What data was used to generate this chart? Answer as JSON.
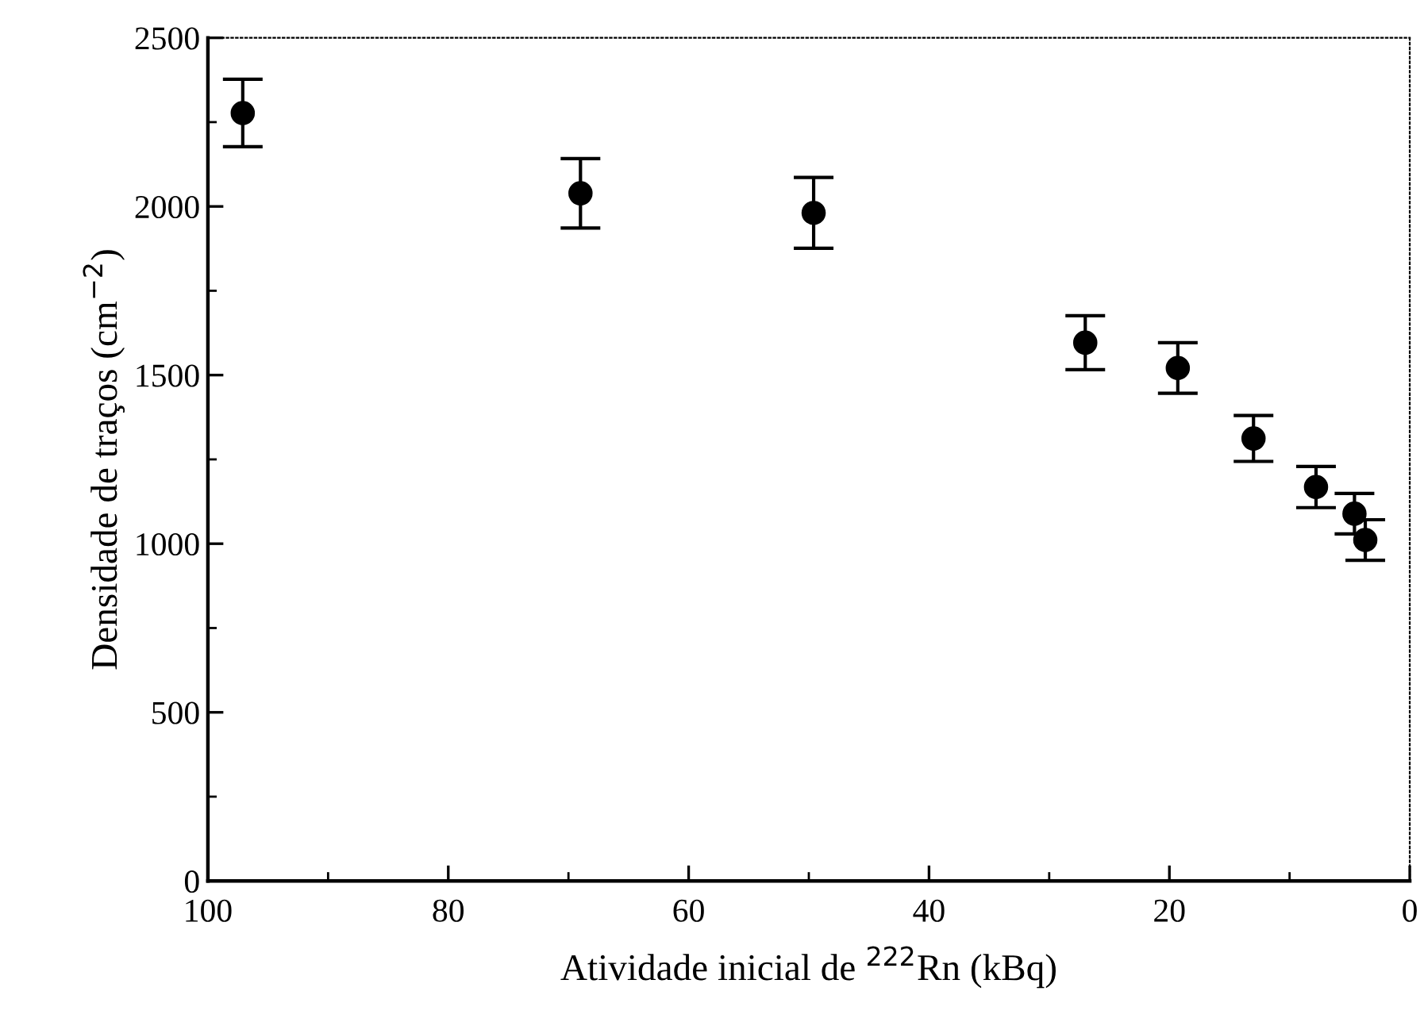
{
  "chart_data": {
    "type": "scatter",
    "xlabel": "Atividade inicial de $^{222}$Rn (kBq)",
    "ylabel": "Densidade de traços (cm$^{−2}$)",
    "x": [
      97.1,
      69.0,
      49.6,
      27.0,
      19.3,
      13.0,
      7.8,
      4.6,
      3.7
    ],
    "series": [
      {
        "color": "#000000",
        "values": [
          2277,
          2039,
          1981,
          1596,
          1521,
          1312,
          1168,
          1089,
          1011
        ],
        "errors": [
          100,
          103,
          105,
          80,
          75,
          68,
          61,
          60,
          60
        ]
      }
    ],
    "xlim": [
      100,
      0
    ],
    "xticks": [
      100,
      80,
      60,
      40,
      20,
      0
    ],
    "ylim": [
      0,
      2500
    ],
    "yticks": [
      0,
      500,
      1000,
      1500,
      2000,
      2500
    ],
    "grid": false,
    "legend": false,
    "marker": "circle"
  }
}
